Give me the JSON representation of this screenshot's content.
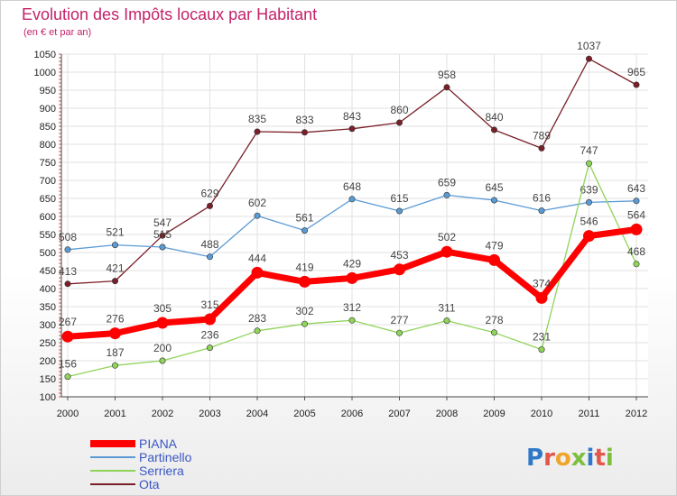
{
  "chart_data": {
    "type": "line",
    "title": "Evolution des Impôts locaux par Habitant",
    "subtitle": "(en € et par an)",
    "xlabel": "",
    "ylabel": "",
    "x": [
      "2000",
      "2001",
      "2002",
      "2003",
      "2004",
      "2005",
      "2006",
      "2007",
      "2008",
      "2009",
      "2010",
      "2011",
      "2012"
    ],
    "ylim": [
      100,
      1050
    ],
    "y_ticks": [
      100,
      150,
      200,
      250,
      300,
      350,
      400,
      450,
      500,
      550,
      600,
      650,
      700,
      750,
      800,
      850,
      900,
      950,
      1000,
      1050
    ],
    "grid": true,
    "legend_position": "bottom-left",
    "series": [
      {
        "name": "PIANA",
        "color": "#ff0000",
        "values": [
          267,
          276,
          305,
          315,
          444,
          419,
          429,
          453,
          502,
          479,
          374,
          546,
          564
        ],
        "labels": [
          "267",
          "276",
          "305",
          "315",
          "444",
          "419",
          "429",
          "453",
          "502",
          "479",
          "374",
          "546",
          "564"
        ]
      },
      {
        "name": "Partinello",
        "color": "#5b9bd5",
        "values": [
          508,
          521,
          515,
          488,
          602,
          561,
          648,
          615,
          659,
          645,
          616,
          639,
          643
        ],
        "labels": [
          "508",
          "521",
          "515",
          "488",
          "602",
          "561",
          "648",
          "615",
          "659",
          "645",
          "616",
          "639",
          "643"
        ]
      },
      {
        "name": "Serriera",
        "color": "#8fd45a",
        "values": [
          156,
          187,
          200,
          236,
          283,
          302,
          312,
          277,
          311,
          278,
          231,
          747,
          468
        ],
        "labels": [
          "156",
          "187",
          "200",
          "236",
          "283",
          "302",
          "312",
          "277",
          "311",
          "278",
          "231",
          "747",
          "468"
        ]
      },
      {
        "name": "Ota",
        "color": "#7a1f28",
        "values": [
          413,
          421,
          547,
          629,
          835,
          833,
          843,
          860,
          958,
          840,
          789,
          1037,
          965
        ],
        "labels": [
          "413",
          "421",
          "547",
          "629",
          "835",
          "833",
          "843",
          "860",
          "958",
          "840",
          "789",
          "1037",
          "965"
        ]
      }
    ]
  },
  "branding": {
    "logo_text": "Proxiti"
  }
}
